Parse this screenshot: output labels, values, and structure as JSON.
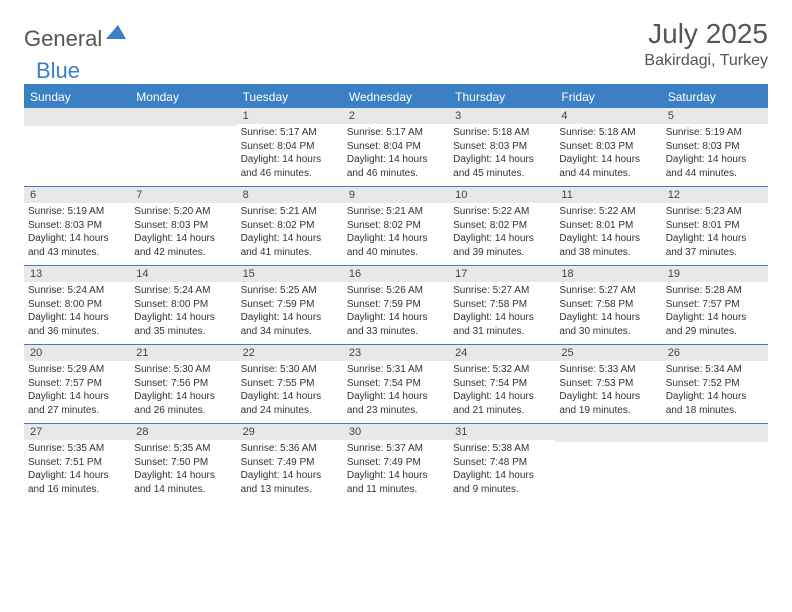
{
  "logo": {
    "text1": "General",
    "text2": "Blue"
  },
  "title": "July 2025",
  "location": "Bakirdagi, Turkey",
  "colors": {
    "accent": "#3b7fc4",
    "headerText": "#ffffff",
    "dayBg": "#e8e8e8"
  },
  "dayHeaders": [
    "Sunday",
    "Monday",
    "Tuesday",
    "Wednesday",
    "Thursday",
    "Friday",
    "Saturday"
  ],
  "weeks": [
    [
      null,
      null,
      {
        "n": "1",
        "sr": "5:17 AM",
        "ss": "8:04 PM",
        "dl": "14 hours and 46 minutes."
      },
      {
        "n": "2",
        "sr": "5:17 AM",
        "ss": "8:04 PM",
        "dl": "14 hours and 46 minutes."
      },
      {
        "n": "3",
        "sr": "5:18 AM",
        "ss": "8:03 PM",
        "dl": "14 hours and 45 minutes."
      },
      {
        "n": "4",
        "sr": "5:18 AM",
        "ss": "8:03 PM",
        "dl": "14 hours and 44 minutes."
      },
      {
        "n": "5",
        "sr": "5:19 AM",
        "ss": "8:03 PM",
        "dl": "14 hours and 44 minutes."
      }
    ],
    [
      {
        "n": "6",
        "sr": "5:19 AM",
        "ss": "8:03 PM",
        "dl": "14 hours and 43 minutes."
      },
      {
        "n": "7",
        "sr": "5:20 AM",
        "ss": "8:03 PM",
        "dl": "14 hours and 42 minutes."
      },
      {
        "n": "8",
        "sr": "5:21 AM",
        "ss": "8:02 PM",
        "dl": "14 hours and 41 minutes."
      },
      {
        "n": "9",
        "sr": "5:21 AM",
        "ss": "8:02 PM",
        "dl": "14 hours and 40 minutes."
      },
      {
        "n": "10",
        "sr": "5:22 AM",
        "ss": "8:02 PM",
        "dl": "14 hours and 39 minutes."
      },
      {
        "n": "11",
        "sr": "5:22 AM",
        "ss": "8:01 PM",
        "dl": "14 hours and 38 minutes."
      },
      {
        "n": "12",
        "sr": "5:23 AM",
        "ss": "8:01 PM",
        "dl": "14 hours and 37 minutes."
      }
    ],
    [
      {
        "n": "13",
        "sr": "5:24 AM",
        "ss": "8:00 PM",
        "dl": "14 hours and 36 minutes."
      },
      {
        "n": "14",
        "sr": "5:24 AM",
        "ss": "8:00 PM",
        "dl": "14 hours and 35 minutes."
      },
      {
        "n": "15",
        "sr": "5:25 AM",
        "ss": "7:59 PM",
        "dl": "14 hours and 34 minutes."
      },
      {
        "n": "16",
        "sr": "5:26 AM",
        "ss": "7:59 PM",
        "dl": "14 hours and 33 minutes."
      },
      {
        "n": "17",
        "sr": "5:27 AM",
        "ss": "7:58 PM",
        "dl": "14 hours and 31 minutes."
      },
      {
        "n": "18",
        "sr": "5:27 AM",
        "ss": "7:58 PM",
        "dl": "14 hours and 30 minutes."
      },
      {
        "n": "19",
        "sr": "5:28 AM",
        "ss": "7:57 PM",
        "dl": "14 hours and 29 minutes."
      }
    ],
    [
      {
        "n": "20",
        "sr": "5:29 AM",
        "ss": "7:57 PM",
        "dl": "14 hours and 27 minutes."
      },
      {
        "n": "21",
        "sr": "5:30 AM",
        "ss": "7:56 PM",
        "dl": "14 hours and 26 minutes."
      },
      {
        "n": "22",
        "sr": "5:30 AM",
        "ss": "7:55 PM",
        "dl": "14 hours and 24 minutes."
      },
      {
        "n": "23",
        "sr": "5:31 AM",
        "ss": "7:54 PM",
        "dl": "14 hours and 23 minutes."
      },
      {
        "n": "24",
        "sr": "5:32 AM",
        "ss": "7:54 PM",
        "dl": "14 hours and 21 minutes."
      },
      {
        "n": "25",
        "sr": "5:33 AM",
        "ss": "7:53 PM",
        "dl": "14 hours and 19 minutes."
      },
      {
        "n": "26",
        "sr": "5:34 AM",
        "ss": "7:52 PM",
        "dl": "14 hours and 18 minutes."
      }
    ],
    [
      {
        "n": "27",
        "sr": "5:35 AM",
        "ss": "7:51 PM",
        "dl": "14 hours and 16 minutes."
      },
      {
        "n": "28",
        "sr": "5:35 AM",
        "ss": "7:50 PM",
        "dl": "14 hours and 14 minutes."
      },
      {
        "n": "29",
        "sr": "5:36 AM",
        "ss": "7:49 PM",
        "dl": "14 hours and 13 minutes."
      },
      {
        "n": "30",
        "sr": "5:37 AM",
        "ss": "7:49 PM",
        "dl": "14 hours and 11 minutes."
      },
      {
        "n": "31",
        "sr": "5:38 AM",
        "ss": "7:48 PM",
        "dl": "14 hours and 9 minutes."
      },
      null,
      null
    ]
  ],
  "labels": {
    "sunrise": "Sunrise: ",
    "sunset": "Sunset: ",
    "daylight": "Daylight: "
  }
}
